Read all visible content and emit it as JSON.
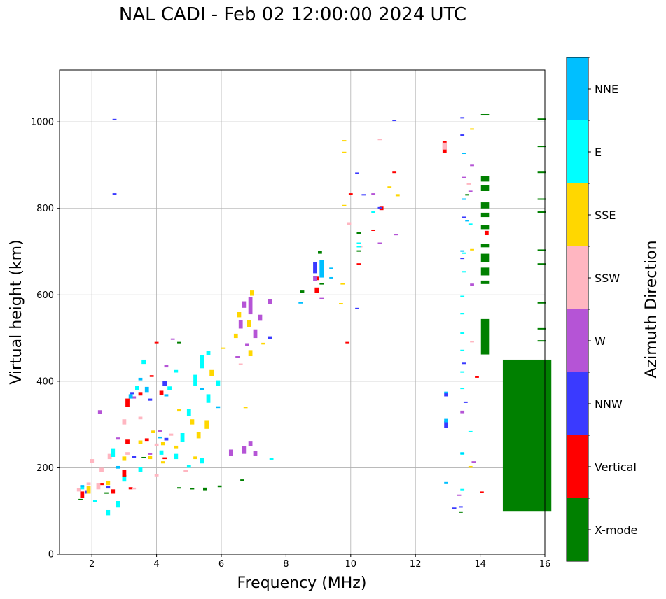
{
  "chart_data": {
    "type": "scatter",
    "title": "NAL CADI - Feb 02 12:00:00 2024 UTC",
    "xlabel": "Frequency (MHz)",
    "ylabel": "Virtual height (km)",
    "xlim": [
      1,
      16
    ],
    "ylim": [
      0,
      1120
    ],
    "xticks": [
      "2",
      "4",
      "6",
      "8",
      "10",
      "12",
      "14",
      "16"
    ],
    "yticks": [
      "0",
      "200",
      "400",
      "600",
      "800",
      "1000"
    ],
    "grid": true,
    "colorbar": {
      "title": "Azimuth Direction",
      "position": "right",
      "categories": [
        {
          "label": "X-mode",
          "color": "#008000"
        },
        {
          "label": "Vertical",
          "color": "#ff0000"
        },
        {
          "label": "NNW",
          "color": "#3a3aff"
        },
        {
          "label": "W",
          "color": "#b554d6"
        },
        {
          "label": "SSW",
          "color": "#ffb6c1"
        },
        {
          "label": "SSE",
          "color": "#ffd700"
        },
        {
          "label": "E",
          "color": "#00ffff"
        },
        {
          "label": "NNE",
          "color": "#00bfff"
        }
      ]
    },
    "series": [
      {
        "name": "X-mode",
        "points": [
          [
            15.45,
            100,
            350
          ],
          [
            15.9,
            1005,
            3
          ],
          [
            15.9,
            942,
            3
          ],
          [
            15.9,
            882,
            3
          ],
          [
            15.9,
            820,
            3
          ],
          [
            15.9,
            790,
            3
          ],
          [
            15.9,
            702,
            3
          ],
          [
            15.9,
            670,
            3
          ],
          [
            15.9,
            580,
            3
          ],
          [
            15.9,
            520,
            3
          ],
          [
            15.9,
            492,
            3
          ],
          [
            14.15,
            1015,
            3
          ],
          [
            14.15,
            862,
            12
          ],
          [
            14.15,
            840,
            14
          ],
          [
            14.15,
            800,
            14
          ],
          [
            14.15,
            780,
            10
          ],
          [
            14.15,
            752,
            10
          ],
          [
            14.15,
            710,
            8
          ],
          [
            14.15,
            675,
            20
          ],
          [
            14.15,
            645,
            18
          ],
          [
            14.15,
            625,
            8
          ],
          [
            14.15,
            462,
            82
          ],
          [
            13.4,
            96,
            3
          ],
          [
            13.6,
            830,
            3
          ],
          [
            10.25,
            740,
            5
          ],
          [
            10.25,
            700,
            3
          ],
          [
            9.05,
            695,
            6
          ],
          [
            8.5,
            605,
            5
          ],
          [
            9.1,
            624,
            3
          ],
          [
            5.5,
            148,
            6
          ],
          [
            5.1,
            150,
            3
          ],
          [
            4.7,
            152,
            3
          ],
          [
            5.95,
            155,
            4
          ],
          [
            6.65,
            170,
            3
          ],
          [
            4.7,
            488,
            3
          ],
          [
            2.45,
            140,
            3
          ],
          [
            3.0,
            180,
            3
          ],
          [
            3.6,
            222,
            3
          ],
          [
            1.65,
            125,
            3
          ]
        ]
      },
      {
        "name": "Vertical",
        "points": [
          [
            12.9,
            928,
            28
          ],
          [
            10.95,
            796,
            8
          ],
          [
            10.0,
            832,
            3
          ],
          [
            11.35,
            882,
            3
          ],
          [
            10.7,
            748,
            3
          ],
          [
            10.25,
            670,
            3
          ],
          [
            9.9,
            488,
            3
          ],
          [
            8.95,
            605,
            12
          ],
          [
            8.95,
            634,
            8
          ],
          [
            14.2,
            738,
            10
          ],
          [
            14.05,
            142,
            3
          ],
          [
            13.9,
            408,
            4
          ],
          [
            3.1,
            340,
            20
          ],
          [
            3.5,
            367,
            8
          ],
          [
            4.15,
            368,
            10
          ],
          [
            3.7,
            262,
            6
          ],
          [
            3.1,
            255,
            10
          ],
          [
            3.0,
            180,
            15
          ],
          [
            2.65,
            140,
            10
          ],
          [
            1.7,
            130,
            15
          ],
          [
            4.0,
            488,
            3
          ],
          [
            3.2,
            150,
            5
          ],
          [
            2.3,
            160,
            5
          ],
          [
            4.25,
            220,
            4
          ],
          [
            3.85,
            410,
            4
          ]
        ]
      },
      {
        "name": "NNW",
        "points": [
          [
            12.95,
            292,
            16
          ],
          [
            12.95,
            365,
            8
          ],
          [
            13.4,
            108,
            3
          ],
          [
            13.2,
            105,
            3
          ],
          [
            13.45,
            1008,
            3
          ],
          [
            13.45,
            968,
            3
          ],
          [
            13.5,
            778,
            3
          ],
          [
            13.45,
            683,
            3
          ],
          [
            13.55,
            350,
            3
          ],
          [
            13.5,
            440,
            3
          ],
          [
            10.2,
            880,
            3
          ],
          [
            10.2,
            567,
            3
          ],
          [
            11.35,
            1002,
            3
          ],
          [
            10.9,
            800,
            3
          ],
          [
            10.4,
            830,
            3
          ],
          [
            8.9,
            650,
            25
          ],
          [
            7.5,
            498,
            6
          ],
          [
            2.7,
            1004,
            3
          ],
          [
            2.7,
            832,
            3
          ],
          [
            4.25,
            390,
            10
          ],
          [
            3.25,
            370,
            5
          ],
          [
            3.8,
            355,
            5
          ],
          [
            4.3,
            263,
            6
          ],
          [
            3.3,
            222,
            5
          ],
          [
            2.5,
            152,
            5
          ],
          [
            1.85,
            140,
            8
          ]
        ]
      },
      {
        "name": "W",
        "points": [
          [
            6.9,
            250,
            12
          ],
          [
            6.7,
            232,
            18
          ],
          [
            6.3,
            228,
            14
          ],
          [
            7.05,
            228,
            10
          ],
          [
            6.9,
            555,
            40
          ],
          [
            6.7,
            570,
            15
          ],
          [
            6.6,
            522,
            20
          ],
          [
            7.05,
            500,
            20
          ],
          [
            7.2,
            540,
            14
          ],
          [
            7.5,
            578,
            12
          ],
          [
            6.8,
            482,
            6
          ],
          [
            6.5,
            455,
            3
          ],
          [
            8.9,
            632,
            12
          ],
          [
            9.1,
            590,
            3
          ],
          [
            10.7,
            832,
            3
          ],
          [
            10.9,
            718,
            3
          ],
          [
            11.4,
            738,
            3
          ],
          [
            13.5,
            870,
            3
          ],
          [
            13.45,
            326,
            6
          ],
          [
            13.35,
            135,
            3
          ],
          [
            13.75,
            620,
            6
          ],
          [
            13.75,
            898,
            3
          ],
          [
            13.7,
            838,
            3
          ],
          [
            13.8,
            212,
            3
          ],
          [
            4.3,
            432,
            6
          ],
          [
            3.8,
            230,
            4
          ],
          [
            2.8,
            265,
            5
          ],
          [
            2.25,
            325,
            8
          ],
          [
            4.1,
            283,
            5
          ],
          [
            3.3,
            360,
            5
          ],
          [
            4.5,
            496,
            3
          ]
        ]
      },
      {
        "name": "SSW",
        "points": [
          [
            12.9,
            936,
            16
          ],
          [
            9.95,
            762,
            6
          ],
          [
            10.9,
            958,
            3
          ],
          [
            10.3,
            710,
            3
          ],
          [
            6.6,
            438,
            3
          ],
          [
            13.75,
            490,
            3
          ],
          [
            13.65,
            855,
            3
          ],
          [
            2.0,
            212,
            8
          ],
          [
            2.3,
            190,
            10
          ],
          [
            2.55,
            220,
            12
          ],
          [
            2.2,
            150,
            15
          ],
          [
            3.0,
            300,
            12
          ],
          [
            3.5,
            312,
            6
          ],
          [
            4.0,
            250,
            6
          ],
          [
            4.45,
            274,
            5
          ],
          [
            3.1,
            230,
            6
          ],
          [
            1.9,
            160,
            6
          ],
          [
            1.6,
            145,
            8
          ],
          [
            4.0,
            180,
            5
          ],
          [
            4.9,
            190,
            5
          ],
          [
            3.3,
            150,
            4
          ]
        ]
      },
      {
        "name": "SSE",
        "points": [
          [
            6.95,
            598,
            12
          ],
          [
            6.55,
            548,
            12
          ],
          [
            6.85,
            526,
            16
          ],
          [
            6.9,
            458,
            14
          ],
          [
            6.45,
            500,
            10
          ],
          [
            7.3,
            485,
            4
          ],
          [
            6.75,
            338,
            3
          ],
          [
            6.05,
            475,
            3
          ],
          [
            9.8,
            955,
            3
          ],
          [
            9.8,
            928,
            3
          ],
          [
            9.8,
            805,
            3
          ],
          [
            9.75,
            624,
            3
          ],
          [
            9.7,
            578,
            3
          ],
          [
            11.2,
            848,
            3
          ],
          [
            11.45,
            828,
            5
          ],
          [
            13.75,
            982,
            3
          ],
          [
            13.75,
            703,
            3
          ],
          [
            13.7,
            200,
            4
          ],
          [
            3.5,
            255,
            8
          ],
          [
            3.8,
            220,
            8
          ],
          [
            4.2,
            252,
            8
          ],
          [
            5.3,
            268,
            15
          ],
          [
            5.1,
            300,
            12
          ],
          [
            5.55,
            290,
            20
          ],
          [
            4.6,
            245,
            6
          ],
          [
            3.0,
            216,
            10
          ],
          [
            2.5,
            160,
            10
          ],
          [
            1.9,
            140,
            18
          ],
          [
            5.7,
            412,
            14
          ],
          [
            4.7,
            330,
            6
          ],
          [
            3.9,
            280,
            6
          ],
          [
            4.2,
            210,
            5
          ],
          [
            5.2,
            220,
            6
          ]
        ]
      },
      {
        "name": "E",
        "points": [
          [
            13.5,
            652,
            3
          ],
          [
            13.5,
            695,
            3
          ],
          [
            13.45,
            595,
            3
          ],
          [
            13.45,
            555,
            3
          ],
          [
            13.45,
            510,
            3
          ],
          [
            13.45,
            470,
            3
          ],
          [
            13.45,
            420,
            3
          ],
          [
            13.45,
            382,
            3
          ],
          [
            13.45,
            230,
            6
          ],
          [
            13.45,
            148,
            3
          ],
          [
            13.7,
            282,
            3
          ],
          [
            13.7,
            762,
            3
          ],
          [
            10.25,
            718,
            3
          ],
          [
            10.25,
            710,
            3
          ],
          [
            10.7,
            790,
            3
          ],
          [
            5.4,
            430,
            30
          ],
          [
            5.2,
            390,
            25
          ],
          [
            5.6,
            350,
            20
          ],
          [
            5.0,
            320,
            15
          ],
          [
            4.8,
            260,
            20
          ],
          [
            5.4,
            210,
            12
          ],
          [
            4.6,
            220,
            12
          ],
          [
            4.15,
            230,
            10
          ],
          [
            3.5,
            190,
            12
          ],
          [
            3.0,
            168,
            10
          ],
          [
            2.8,
            108,
            15
          ],
          [
            2.5,
            90,
            12
          ],
          [
            2.65,
            225,
            20
          ],
          [
            3.6,
            440,
            10
          ],
          [
            3.4,
            380,
            10
          ],
          [
            4.6,
            420,
            6
          ],
          [
            5.6,
            460,
            10
          ],
          [
            5.9,
            390,
            12
          ],
          [
            5.0,
            200,
            6
          ],
          [
            4.4,
            380,
            8
          ],
          [
            1.7,
            150,
            8
          ],
          [
            2.1,
            120,
            6
          ],
          [
            7.55,
            218,
            5
          ]
        ]
      },
      {
        "name": "NNE",
        "points": [
          [
            12.95,
            305,
            8
          ],
          [
            12.95,
            372,
            4
          ],
          [
            13.5,
            926,
            3
          ],
          [
            13.5,
            820,
            3
          ],
          [
            13.6,
            770,
            3
          ],
          [
            13.45,
            700,
            3
          ],
          [
            12.95,
            164,
            3
          ],
          [
            13.45,
            232,
            3
          ],
          [
            9.1,
            640,
            40
          ],
          [
            9.4,
            660,
            3
          ],
          [
            9.4,
            638,
            3
          ],
          [
            8.45,
            580,
            3
          ],
          [
            3.7,
            375,
            12
          ],
          [
            3.2,
            360,
            10
          ],
          [
            3.5,
            402,
            6
          ],
          [
            4.3,
            365,
            5
          ],
          [
            5.4,
            380,
            5
          ],
          [
            4.1,
            268,
            4
          ],
          [
            1.7,
            155,
            5
          ],
          [
            2.8,
            198,
            6
          ],
          [
            5.9,
            338,
            4
          ]
        ]
      }
    ]
  }
}
